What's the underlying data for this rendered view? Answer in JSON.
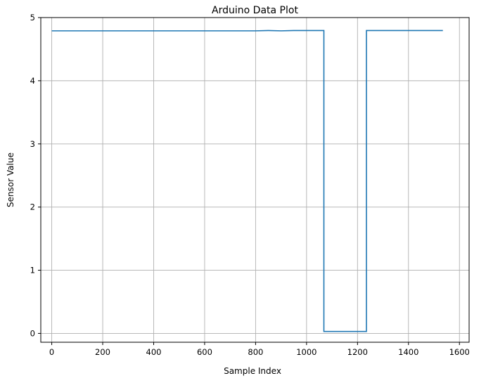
{
  "chart_data": {
    "type": "line",
    "title": "Arduino Data Plot",
    "xlabel": "Sample Index",
    "ylabel": "Sensor Value",
    "xlim": [
      -43,
      1638
    ],
    "ylim": [
      -0.14,
      5.0
    ],
    "xticks": [
      0,
      200,
      400,
      600,
      800,
      1000,
      1200,
      1400,
      1600
    ],
    "yticks": [
      0,
      1,
      2,
      3,
      4,
      5
    ],
    "grid": true,
    "colors": {
      "series": "#1f77b4",
      "grid": "#b0b0b0"
    },
    "series": [
      {
        "x": [
          0,
          100,
          200,
          300,
          400,
          500,
          600,
          700,
          800,
          850,
          900,
          950,
          1000,
          1068,
          1068,
          1100,
          1150,
          1200,
          1235,
          1235,
          1300,
          1400,
          1500,
          1535
        ],
        "y": [
          4.79,
          4.79,
          4.79,
          4.79,
          4.79,
          4.79,
          4.79,
          4.79,
          4.79,
          4.795,
          4.79,
          4.795,
          4.795,
          4.795,
          0.03,
          0.03,
          0.03,
          0.03,
          0.03,
          4.795,
          4.795,
          4.795,
          4.795,
          4.795
        ]
      }
    ]
  }
}
